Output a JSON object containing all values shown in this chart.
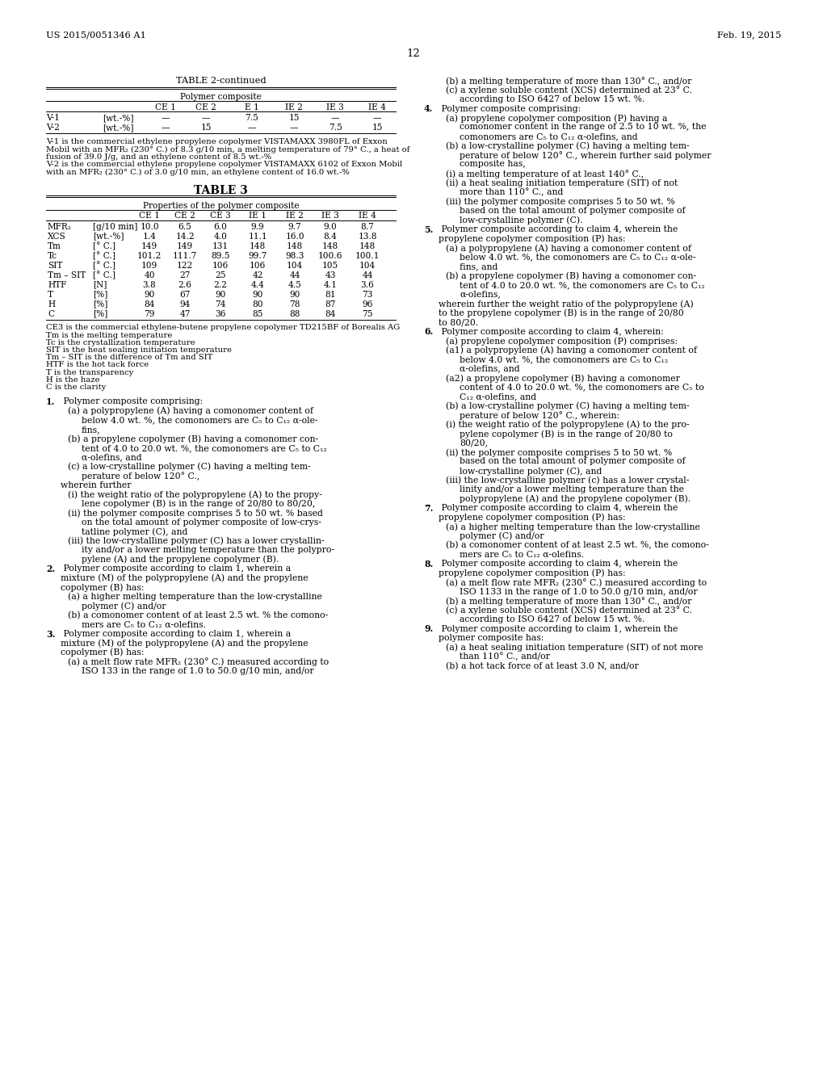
{
  "page_header_left": "US 2015/0051346 A1",
  "page_header_right": "Feb. 19, 2015",
  "page_number": "12",
  "background_color": "#ffffff",
  "table2_title": "TABLE 2-continued",
  "table2_subtitle": "Polymer composite",
  "table2_cols": [
    "CE 1",
    "CE 2",
    "E 1",
    "IE 2",
    "IE 3",
    "IE 4"
  ],
  "table2_rows": [
    [
      "V-1",
      "[wt.-%]",
      "—",
      "—",
      "7.5",
      "15",
      "—",
      "—"
    ],
    [
      "V-2",
      "[wt.-%]",
      "—",
      "15",
      "—",
      "—",
      "7.5",
      "15"
    ]
  ],
  "table2_note1_lines": [
    "V-1 is the commercial ethylene propylene copolymer VISTAMAXX 3980FL of Exxon",
    "Mobil with an MFR₂ (230° C.) of 8.3 g/10 min, a melting temperature of 79° C., a heat of",
    "fusion of 39.0 J/g, and an ethylene content of 8.5 wt.-%"
  ],
  "table2_note2_lines": [
    "V-2 is the commercial ethylene propylene copolymer VISTAMAXX 6102 of Exxon Mobil",
    "with an MFR₂ (230° C.) of 3.0 g/10 min, an ethylene content of 16.0 wt.-%"
  ],
  "table3_title": "TABLE 3",
  "table3_subtitle": "Properties of the polymer composite",
  "table3_cols": [
    "CE 1",
    "CE 2",
    "CE 3",
    "IE 1",
    "IE 2",
    "IE 3",
    "IE 4"
  ],
  "table3_rows": [
    [
      "MFR₂",
      "[g/10 min]",
      "10.0",
      "6.5",
      "6.0",
      "9.9",
      "9.7",
      "9.0",
      "8.7"
    ],
    [
      "XCS",
      "[wt.-%]",
      "1.4",
      "14.2",
      "4.0",
      "11.1",
      "16.0",
      "8.4",
      "13.8"
    ],
    [
      "Tm",
      "[° C.]",
      "149",
      "149",
      "131",
      "148",
      "148",
      "148",
      "148"
    ],
    [
      "Tc",
      "[° C.]",
      "101.2",
      "111.7",
      "89.5",
      "99.7",
      "98.3",
      "100.6",
      "100.1"
    ],
    [
      "SIT",
      "[° C.]",
      "109",
      "122",
      "106",
      "106",
      "104",
      "105",
      "104"
    ],
    [
      "Tm – SIT",
      "[° C.]",
      "40",
      "27",
      "25",
      "42",
      "44",
      "43",
      "44"
    ],
    [
      "HTF",
      "[N]",
      "3.8",
      "2.6",
      "2.2",
      "4.4",
      "4.5",
      "4.1",
      "3.6"
    ],
    [
      "T",
      "[%]",
      "90",
      "67",
      "90",
      "90",
      "90",
      "81",
      "73"
    ],
    [
      "H",
      "[%]",
      "84",
      "94",
      "74",
      "80",
      "78",
      "87",
      "96"
    ],
    [
      "C",
      "[%]",
      "79",
      "47",
      "36",
      "85",
      "88",
      "84",
      "75"
    ]
  ],
  "table3_notes": [
    "CE3 is the commercial ethylene-butene propylene copolymer TD215BF of Borealis AG",
    "Tm is the melting temperature",
    "Tc is the crystallization temperature",
    "SIT is the heat sealing initiation temperature",
    "Tm – SIT is the difference of Tm and SIT",
    "HTF is the hot tack force",
    "T is the transparency",
    "H is the haze",
    "C is the clarity"
  ],
  "left_col_lines": [
    {
      "t": "claim",
      "n": "1",
      "text": " Polymer composite comprising:"
    },
    {
      "t": "item",
      "ind": 1,
      "text": "(a) a polypropylene (A) having a comonomer content of"
    },
    {
      "t": "cont",
      "text": "below 4.0 wt. %, the comonomers are C₅ to C₁₂ α-ole-"
    },
    {
      "t": "cont",
      "text": "fins,"
    },
    {
      "t": "item",
      "ind": 1,
      "text": "(b) a propylene copolymer (B) having a comonomer con-"
    },
    {
      "t": "cont",
      "text": "tent of 4.0 to 20.0 wt. %, the comonomers are C₅ to C₁₂"
    },
    {
      "t": "cont",
      "text": "α-olefins, and"
    },
    {
      "t": "item",
      "ind": 1,
      "text": "(c) a low-crystalline polymer (C) having a melting tem-"
    },
    {
      "t": "cont",
      "text": "perature of below 120° C.,"
    },
    {
      "t": "body",
      "text": "wherein further"
    },
    {
      "t": "item",
      "ind": 1,
      "text": "(i) the weight ratio of the polypropylene (A) to the propy-"
    },
    {
      "t": "cont",
      "text": "lene copolymer (B) is in the range of 20/80 to 80/20,"
    },
    {
      "t": "item",
      "ind": 1,
      "text": "(ii) the polymer composite comprises 5 to 50 wt. % based"
    },
    {
      "t": "cont",
      "text": "on the total amount of polymer composite of low-crys-"
    },
    {
      "t": "cont",
      "text": "tatline polymer (C), and"
    },
    {
      "t": "item",
      "ind": 1,
      "text": "(iii) the low-crystalline polymer (C) has a lower crystallin-"
    },
    {
      "t": "cont",
      "text": "ity and/or a lower melting temperature than the polypro-"
    },
    {
      "t": "cont",
      "text": "pylene (A) and the propylene copolymer (B)."
    },
    {
      "t": "claim",
      "n": "2",
      "text": " Polymer composite according to claim 1, wherein a"
    },
    {
      "t": "body",
      "text": "mixture (M) of the polypropylene (A) and the propylene"
    },
    {
      "t": "body",
      "text": "copolymer (B) has:"
    },
    {
      "t": "item",
      "ind": 1,
      "text": "(a) a higher melting temperature than the low-crystalline"
    },
    {
      "t": "cont",
      "text": "polymer (C) and/or"
    },
    {
      "t": "item",
      "ind": 1,
      "text": "(b) a comonomer content of at least 2.5 wt. % the comono-"
    },
    {
      "t": "cont",
      "text": "mers are C₅ to C₁₂ α-olefins."
    },
    {
      "t": "claim",
      "n": "3",
      "text": " Polymer composite according to claim 1, wherein a"
    },
    {
      "t": "body",
      "text": "mixture (M) of the polypropylene (A) and the propylene"
    },
    {
      "t": "body",
      "text": "copolymer (B) has:"
    },
    {
      "t": "item",
      "ind": 1,
      "text": "(a) a melt flow rate MFR₂ (230° C.) measured according to"
    },
    {
      "t": "cont",
      "text": "ISO 133 in the range of 1.0 to 50.0 g/10 min, and/or"
    }
  ],
  "right_col_lines": [
    {
      "t": "item",
      "ind": 1,
      "text": "(b) a melting temperature of more than 130° C., and/or"
    },
    {
      "t": "item",
      "ind": 1,
      "text": "(c) a xylene soluble content (XCS) determined at 23° C."
    },
    {
      "t": "cont",
      "text": "according to ISO 6427 of below 15 wt. %."
    },
    {
      "t": "claim",
      "n": "4",
      "text": " Polymer composite comprising:"
    },
    {
      "t": "item",
      "ind": 1,
      "text": "(a) propylene copolymer composition (P) having a"
    },
    {
      "t": "cont",
      "text": "comonomer content in the range of 2.5 to 10 wt. %, the"
    },
    {
      "t": "cont",
      "text": "comonomers are C₅ to C₁₂ α-olefins, and"
    },
    {
      "t": "item",
      "ind": 1,
      "text": "(b) a low-crystalline polymer (C) having a melting tem-"
    },
    {
      "t": "cont",
      "text": "perature of below 120° C., wherein further said polymer"
    },
    {
      "t": "cont",
      "text": "composite has,"
    },
    {
      "t": "item",
      "ind": 1,
      "text": "(i) a melting temperature of at least 140° C.,"
    },
    {
      "t": "item",
      "ind": 1,
      "text": "(ii) a heat sealing initiation temperature (SIT) of not"
    },
    {
      "t": "cont",
      "text": "more than 110° C., and"
    },
    {
      "t": "item",
      "ind": 1,
      "text": "(iii) the polymer composite comprises 5 to 50 wt. %"
    },
    {
      "t": "cont",
      "text": "based on the total amount of polymer composite of"
    },
    {
      "t": "cont",
      "text": "low-crystalline polymer (C)."
    },
    {
      "t": "claim",
      "n": "5",
      "text": " Polymer composite according to claim 4, wherein the"
    },
    {
      "t": "body",
      "text": "propylene copolymer composition (P) has:"
    },
    {
      "t": "item",
      "ind": 1,
      "text": "(a) a polypropylene (A) having a comonomer content of"
    },
    {
      "t": "cont",
      "text": "below 4.0 wt. %, the comonomers are C₅ to C₁₂ α-ole-"
    },
    {
      "t": "cont",
      "text": "fins, and"
    },
    {
      "t": "item",
      "ind": 1,
      "text": "(b) a propylene copolymer (B) having a comonomer con-"
    },
    {
      "t": "cont",
      "text": "tent of 4.0 to 20.0 wt. %, the comonomers are C₅ to C₁₂"
    },
    {
      "t": "cont",
      "text": "α-olefins,"
    },
    {
      "t": "body",
      "text": "wherein further the weight ratio of the polypropylene (A)"
    },
    {
      "t": "body",
      "text": "to the propylene copolymer (B) is in the range of 20/80"
    },
    {
      "t": "body",
      "text": "to 80/20."
    },
    {
      "t": "claim",
      "n": "6",
      "text": " Polymer composite according to claim 4, wherein:"
    },
    {
      "t": "item",
      "ind": 1,
      "text": "(a) propylene copolymer composition (P) comprises:"
    },
    {
      "t": "item",
      "ind": 1,
      "text": "(a1) a polypropylene (A) having a comonomer content of"
    },
    {
      "t": "cont",
      "text": "below 4.0 wt. %, the comonomers are C₅ to C₁₂"
    },
    {
      "t": "cont",
      "text": "α-olefins, and"
    },
    {
      "t": "item",
      "ind": 1,
      "text": "(a2) a propylene copolymer (B) having a comonomer"
    },
    {
      "t": "cont",
      "text": "content of 4.0 to 20.0 wt. %, the comonomers are C₅ to"
    },
    {
      "t": "cont",
      "text": "C₁₂ α-olefins, and"
    },
    {
      "t": "item",
      "ind": 1,
      "text": "(b) a low-crystalline polymer (C) having a melting tem-"
    },
    {
      "t": "cont",
      "text": "perature of below 120° C., wherein:"
    },
    {
      "t": "item",
      "ind": 1,
      "text": "(i) the weight ratio of the polypropylene (A) to the pro-"
    },
    {
      "t": "cont",
      "text": "pylene copolymer (B) is in the range of 20/80 to"
    },
    {
      "t": "cont",
      "text": "80/20,"
    },
    {
      "t": "item",
      "ind": 1,
      "text": "(ii) the polymer composite comprises 5 to 50 wt. %"
    },
    {
      "t": "cont",
      "text": "based on the total amount of polymer composite of"
    },
    {
      "t": "cont",
      "text": "low-crystalline polymer (C), and"
    },
    {
      "t": "item",
      "ind": 1,
      "text": "(iii) the low-crystalline polymer (c) has a lower crystal-"
    },
    {
      "t": "cont",
      "text": "linity and/or a lower melting temperature than the"
    },
    {
      "t": "cont",
      "text": "polypropylene (A) and the propylene copolymer (B)."
    },
    {
      "t": "claim",
      "n": "7",
      "text": " Polymer composite according to claim 4, wherein the"
    },
    {
      "t": "body",
      "text": "propylene copolymer composition (P) has:"
    },
    {
      "t": "item",
      "ind": 1,
      "text": "(a) a higher melting temperature than the low-crystalline"
    },
    {
      "t": "cont",
      "text": "polymer (C) and/or"
    },
    {
      "t": "item",
      "ind": 1,
      "text": "(b) a comonomer content of at least 2.5 wt. %, the comono-"
    },
    {
      "t": "cont",
      "text": "mers are C₅ to C₁₂ α-olefins."
    },
    {
      "t": "claim",
      "n": "8",
      "text": " Polymer composite according to claim 4, wherein the"
    },
    {
      "t": "body",
      "text": "propylene copolymer composition (P) has:"
    },
    {
      "t": "item",
      "ind": 1,
      "text": "(a) a melt flow rate MFR₂ (230° C.) measured according to"
    },
    {
      "t": "cont",
      "text": "ISO 1133 in the range of 1.0 to 50.0 g/10 min, and/or"
    },
    {
      "t": "item",
      "ind": 1,
      "text": "(b) a melting temperature of more than 130° C., and/or"
    },
    {
      "t": "item",
      "ind": 1,
      "text": "(c) a xylene soluble content (XCS) determined at 23° C."
    },
    {
      "t": "cont",
      "text": "according to ISO 6427 of below 15 wt. %."
    },
    {
      "t": "claim",
      "n": "9",
      "text": " Polymer composite according to claim 1, wherein the"
    },
    {
      "t": "body",
      "text": "polymer composite has:"
    },
    {
      "t": "item",
      "ind": 1,
      "text": "(a) a heat sealing initiation temperature (SIT) of not more"
    },
    {
      "t": "cont",
      "text": "than 110° C., and/or"
    },
    {
      "t": "item",
      "ind": 1,
      "text": "(b) a hot tack force of at least 3.0 N, and/or"
    }
  ]
}
